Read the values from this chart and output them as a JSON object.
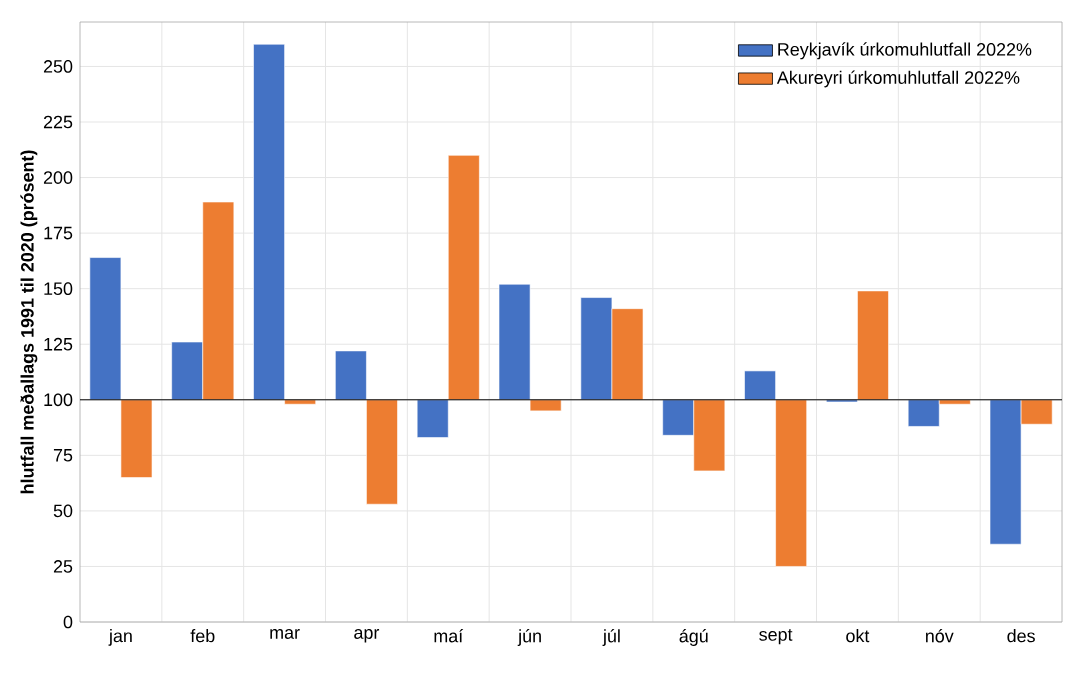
{
  "chart_data": {
    "type": "bar",
    "ylabel": "hlutfall  meðallags 1991 til 2020 (prósent)",
    "categories": [
      "jan",
      "feb",
      "mar",
      "apr",
      "maí",
      "jún",
      "júl",
      "ágú",
      "sept",
      "okt",
      "nóv",
      "des"
    ],
    "series": [
      {
        "name": "Reykjavík úrkomuhlutfall 2022%",
        "color": "#4472c4",
        "base": [
          100,
          100,
          100,
          100,
          100,
          100,
          100,
          100,
          100,
          100,
          100,
          100
        ],
        "values": [
          64,
          26,
          160,
          22,
          -17,
          52,
          46,
          -16,
          13,
          -1,
          -12,
          -65
        ]
      },
      {
        "name": "Akureyri úrkomuhlutfall 2022%",
        "color": "#ed7d31",
        "base": [
          100,
          100,
          100,
          100,
          100,
          100,
          100,
          100,
          100,
          100,
          100,
          100
        ],
        "values": [
          -35,
          89,
          -2,
          -47,
          110,
          -5,
          41,
          -32,
          -75,
          49,
          -2,
          -11
        ]
      }
    ],
    "ylim": [
      0,
      270
    ],
    "yticks": [
      0,
      25,
      50,
      75,
      100,
      125,
      150,
      175,
      200,
      225,
      250
    ],
    "ref_lines": [
      {
        "axis": "y",
        "value": 100,
        "color": "#000000"
      }
    ],
    "grid": true,
    "legend": "top right"
  }
}
